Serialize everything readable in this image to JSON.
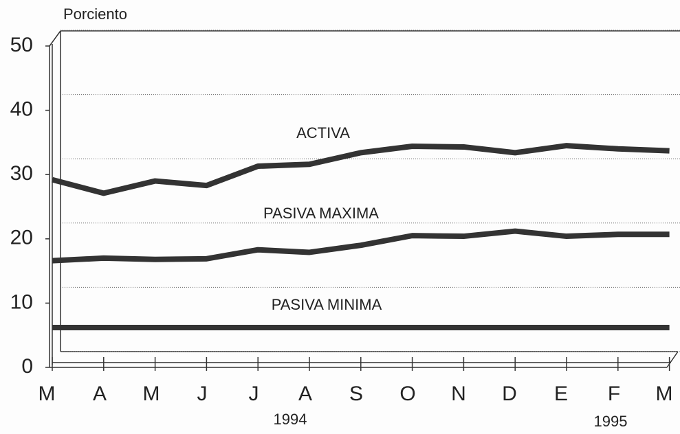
{
  "chart_data": {
    "type": "line",
    "y_axis_label": "Porciento",
    "categories": [
      "M",
      "A",
      "M",
      "J",
      "J",
      "A",
      "S",
      "O",
      "N",
      "D",
      "E",
      "F",
      "M"
    ],
    "annotations": [
      "1994",
      "1995"
    ],
    "series": [
      {
        "name": "ACTIVA",
        "color": "#333333",
        "values": [
          29.2,
          27.1,
          29.0,
          28.3,
          31.3,
          31.6,
          33.4,
          34.4,
          34.3,
          33.4,
          34.5,
          34.0,
          33.7
        ]
      },
      {
        "name": "PASIVA MAXIMA",
        "color": "#333333",
        "values": [
          16.6,
          17.0,
          16.8,
          16.9,
          18.3,
          17.9,
          19.0,
          20.5,
          20.4,
          21.2,
          20.4,
          20.7,
          20.7
        ]
      },
      {
        "name": "PASIVA MINIMA",
        "color": "#333333",
        "values": [
          6.2,
          6.2,
          6.2,
          6.2,
          6.2,
          6.2,
          6.2,
          6.2,
          6.2,
          6.2,
          6.2,
          6.2,
          6.2
        ]
      }
    ],
    "ylim": [
      0,
      50
    ],
    "yticks": [
      0,
      10,
      20,
      30,
      40,
      50
    ],
    "grid": true
  }
}
